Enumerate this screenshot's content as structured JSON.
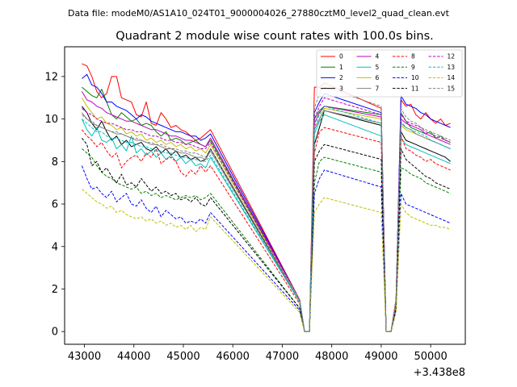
{
  "figure": {
    "suptitle": "Data file: modeM0/AS1A10_024T01_9000004026_27880cztM0_level2_quad_clean.evt",
    "title": "Quadrant 2 module wise count rates with 100.0s bins.",
    "offset_label": "+3.438e8"
  },
  "chart_data": {
    "type": "line",
    "title": "Quadrant 2 module wise count rates with 100.0s bins.",
    "xlabel": "",
    "ylabel": "",
    "x_offset": 343800000,
    "xlim": [
      42600,
      50700
    ],
    "ylim": [
      -0.6,
      13.4
    ],
    "xticks": [
      43000,
      44000,
      45000,
      46000,
      47000,
      48000,
      49000,
      50000
    ],
    "yticks": [
      0,
      2,
      4,
      6,
      8,
      10,
      12
    ],
    "segments": [
      {
        "start": 42950,
        "n": 27
      },
      {
        "start": 47350,
        "n": 6
      },
      {
        "start": 49000,
        "n": 15
      }
    ],
    "series": [
      {
        "name": "0",
        "color": "#ff0000",
        "dash": "solid",
        "values": [
          12.6,
          12.5,
          12.0,
          11.3,
          11.0,
          11.2,
          12.0,
          12.0,
          11.0,
          10.9,
          10.8,
          10.2,
          10.1,
          10.8,
          9.8,
          9.7,
          10.3,
          10.0,
          9.6,
          9.7,
          9.5,
          9.4,
          9.2,
          9.0,
          9.1,
          9.3,
          9.5,
          1.5,
          0,
          0,
          11.5,
          11.5,
          11.7,
          10.5,
          0,
          0,
          1.5,
          10.9,
          10.6,
          10.7,
          10.2,
          10.0,
          10.3,
          10.0,
          9.8,
          10.0,
          9.7,
          9.8,
          9.8,
          9.6
        ]
      },
      {
        "name": "1",
        "color": "#008000",
        "dash": "solid",
        "values": [
          11.5,
          11.3,
          11.1,
          11.0,
          11.4,
          10.8,
          10.2,
          10.0,
          10.3,
          10.1,
          9.9,
          10.0,
          9.7,
          9.8,
          9.7,
          9.4,
          9.2,
          9.4,
          9.0,
          9.1,
          9.0,
          8.8,
          8.9,
          9.0,
          8.8,
          8.7,
          9.0,
          1.5,
          0,
          0,
          10.0,
          10.4,
          10.6,
          10.2,
          0,
          0,
          1.5,
          10.3,
          9.9,
          9.6,
          9.5,
          9.4,
          9.3,
          9.4,
          9.1,
          9.2,
          9.0,
          8.9,
          8.8,
          8.3
        ]
      },
      {
        "name": "2",
        "color": "#0000ff",
        "dash": "solid",
        "values": [
          11.9,
          12.1,
          11.6,
          11.5,
          11.2,
          10.8,
          10.8,
          10.6,
          10.5,
          10.4,
          10.2,
          10.0,
          10.2,
          10.1,
          9.9,
          9.8,
          9.7,
          9.6,
          9.5,
          9.4,
          9.4,
          9.3,
          9.2,
          9.2,
          9.0,
          9.1,
          9.3,
          1.5,
          0,
          0,
          10.3,
          10.8,
          11.2,
          10.3,
          0,
          0,
          1.5,
          11.1,
          10.7,
          10.6,
          10.5,
          10.3,
          10.2,
          10.0,
          9.9,
          9.8,
          9.7,
          9.6,
          9.8,
          8.9
        ]
      },
      {
        "name": "3",
        "color": "#000000",
        "dash": "solid",
        "values": [
          10.6,
          10.3,
          9.8,
          9.5,
          9.9,
          9.4,
          9.0,
          9.2,
          8.8,
          9.0,
          8.7,
          8.8,
          8.9,
          8.6,
          8.5,
          8.7,
          8.4,
          8.6,
          8.3,
          8.5,
          8.2,
          8.3,
          8.1,
          8.2,
          8.0,
          8.1,
          8.6,
          1.4,
          0,
          0,
          8.8,
          9.6,
          10.4,
          9.7,
          0,
          0,
          1.4,
          9.4,
          9.0,
          8.9,
          8.8,
          8.7,
          8.6,
          8.5,
          8.4,
          8.3,
          8.2,
          8.0,
          8.1,
          7.9
        ]
      },
      {
        "name": "4",
        "color": "#bf00bf",
        "dash": "solid",
        "values": [
          11.3,
          10.9,
          10.8,
          10.6,
          10.5,
          10.3,
          10.2,
          10.1,
          10.0,
          9.9,
          9.9,
          9.8,
          9.7,
          9.6,
          9.5,
          9.5,
          9.4,
          9.3,
          9.2,
          9.2,
          9.1,
          9.0,
          9.0,
          8.9,
          8.8,
          8.7,
          9.1,
          1.5,
          0,
          0,
          9.8,
          10.3,
          10.6,
          10.1,
          0,
          0,
          1.5,
          10.0,
          9.8,
          9.7,
          9.6,
          9.5,
          9.3,
          9.2,
          9.1,
          9.0,
          8.9,
          8.8,
          9.2,
          7.8
        ]
      },
      {
        "name": "5",
        "color": "#00bfbf",
        "dash": "solid",
        "values": [
          10.0,
          9.5,
          9.2,
          9.6,
          9.0,
          8.9,
          9.1,
          8.6,
          8.8,
          8.5,
          9.2,
          8.4,
          8.6,
          8.3,
          8.5,
          8.2,
          8.4,
          8.1,
          8.3,
          8.0,
          8.2,
          7.9,
          8.1,
          7.8,
          7.9,
          7.7,
          8.2,
          1.4,
          0,
          0,
          9.3,
          9.9,
          10.2,
          9.2,
          0,
          0,
          1.4,
          9.1,
          8.8,
          8.7,
          8.6,
          8.5,
          8.4,
          8.3,
          8.2,
          8.1,
          8.0,
          7.9,
          7.8,
          7.2
        ]
      },
      {
        "name": "6",
        "color": "#bfbf00",
        "dash": "solid",
        "values": [
          11.0,
          10.6,
          10.3,
          10.0,
          10.1,
          9.8,
          9.7,
          9.5,
          9.6,
          9.3,
          9.4,
          9.2,
          9.3,
          9.0,
          9.1,
          8.9,
          9.0,
          8.8,
          8.9,
          8.7,
          8.8,
          8.6,
          8.7,
          8.5,
          8.6,
          8.4,
          8.8,
          1.5,
          0,
          0,
          9.5,
          10.0,
          10.5,
          10.0,
          0,
          0,
          1.5,
          9.7,
          9.5,
          9.4,
          9.3,
          9.2,
          9.1,
          9.0,
          8.9,
          8.8,
          8.7,
          8.6,
          8.5,
          8.4
        ]
      },
      {
        "name": "7",
        "color": "#808080",
        "dash": "solid",
        "values": [
          10.3,
          10.0,
          9.8,
          9.7,
          9.6,
          9.5,
          9.4,
          9.3,
          9.3,
          9.2,
          9.1,
          9.0,
          9.0,
          8.9,
          8.8,
          8.8,
          8.7,
          8.6,
          8.6,
          8.5,
          8.4,
          8.4,
          8.3,
          8.2,
          8.2,
          8.1,
          8.5,
          1.4,
          0,
          0,
          9.5,
          10.0,
          10.4,
          9.8,
          0,
          0,
          1.4,
          9.8,
          9.6,
          9.5,
          9.3,
          9.2,
          9.1,
          9.0,
          8.9,
          8.8,
          8.7,
          8.6,
          8.5,
          8.3
        ]
      },
      {
        "name": "8",
        "color": "#ff0000",
        "dash": "dashed",
        "values": [
          9.5,
          9.2,
          9.0,
          8.7,
          8.9,
          8.5,
          8.2,
          8.4,
          7.7,
          8.0,
          8.2,
          8.3,
          8.0,
          8.4,
          8.2,
          8.6,
          7.9,
          8.1,
          8.2,
          8.0,
          7.5,
          7.3,
          7.6,
          7.4,
          7.8,
          7.5,
          7.8,
          1.3,
          0,
          0,
          8.4,
          9.4,
          9.6,
          8.9,
          0,
          0,
          1.3,
          9.2,
          8.6,
          8.5,
          8.3,
          8.2,
          8.0,
          8.1,
          7.9,
          7.8,
          7.7,
          7.6,
          7.4,
          7.2
        ]
      },
      {
        "name": "9",
        "color": "#008000",
        "dash": "dashed",
        "values": [
          8.6,
          8.4,
          8.2,
          7.8,
          7.5,
          7.3,
          7.2,
          7.0,
          6.9,
          6.8,
          6.7,
          6.8,
          6.5,
          6.6,
          6.4,
          6.5,
          6.3,
          6.4,
          6.3,
          6.2,
          6.3,
          6.4,
          6.3,
          6.4,
          6.2,
          6.3,
          6.5,
          1.1,
          0,
          0,
          7.0,
          8.0,
          8.2,
          7.5,
          0,
          0,
          1.1,
          7.7,
          7.6,
          7.4,
          7.3,
          7.2,
          7.0,
          6.9,
          6.8,
          6.7,
          6.6,
          6.5,
          6.4,
          6.2
        ]
      },
      {
        "name": "10",
        "color": "#0000ff",
        "dash": "dashed",
        "values": [
          7.8,
          7.2,
          6.7,
          6.8,
          6.5,
          6.3,
          6.6,
          6.1,
          6.3,
          6.5,
          6.0,
          5.9,
          6.2,
          5.8,
          5.6,
          5.9,
          5.4,
          5.7,
          5.5,
          5.3,
          5.4,
          5.1,
          5.2,
          5.1,
          5.3,
          5.1,
          5.6,
          1.0,
          0,
          0,
          6.5,
          7.2,
          7.6,
          6.8,
          0,
          0,
          1.0,
          6.5,
          6.0,
          5.9,
          5.8,
          5.7,
          5.6,
          5.5,
          5.4,
          5.3,
          5.2,
          5.1,
          5.7,
          5.3
        ]
      },
      {
        "name": "11",
        "color": "#000000",
        "dash": "dashed",
        "values": [
          9.1,
          8.8,
          7.8,
          8.0,
          7.5,
          7.7,
          7.3,
          7.0,
          7.4,
          6.9,
          7.0,
          6.8,
          7.2,
          6.9,
          6.6,
          6.8,
          6.5,
          6.6,
          6.4,
          6.5,
          6.2,
          6.3,
          6.1,
          6.3,
          6.0,
          5.9,
          6.3,
          1.1,
          0,
          0,
          8.0,
          8.5,
          8.8,
          8.1,
          0,
          0,
          1.1,
          8.6,
          8.1,
          7.9,
          7.7,
          7.5,
          7.3,
          7.2,
          7.0,
          6.9,
          6.8,
          6.7,
          6.5,
          6.1
        ]
      },
      {
        "name": "12",
        "color": "#bf00bf",
        "dash": "dashed",
        "values": [
          10.5,
          10.3,
          10.2,
          10.0,
          9.9,
          9.8,
          9.8,
          9.7,
          9.6,
          9.5,
          9.5,
          9.4,
          9.4,
          9.3,
          9.2,
          9.2,
          9.1,
          9.0,
          9.0,
          8.9,
          8.9,
          8.8,
          8.8,
          8.7,
          8.6,
          8.6,
          8.9,
          1.5,
          0,
          0,
          10.0,
          10.6,
          11.0,
          10.2,
          0,
          0,
          1.5,
          10.2,
          9.9,
          9.8,
          9.7,
          9.6,
          9.4,
          9.3,
          9.2,
          9.1,
          9.0,
          8.9,
          8.8,
          8.6
        ]
      },
      {
        "name": "13",
        "color": "#00bfbf",
        "dash": "dashed",
        "values": [
          10.0,
          9.8,
          9.6,
          9.4,
          9.4,
          9.2,
          9.1,
          9.1,
          9.0,
          8.9,
          8.9,
          8.8,
          8.7,
          8.7,
          8.6,
          8.5,
          8.5,
          8.4,
          8.4,
          8.3,
          8.2,
          8.2,
          8.1,
          8.1,
          8.0,
          8.0,
          8.3,
          1.4,
          0,
          0,
          9.6,
          10.2,
          10.6,
          9.8,
          0,
          0,
          1.4,
          9.9,
          9.6,
          9.5,
          9.4,
          9.3,
          9.2,
          9.0,
          8.9,
          8.8,
          8.7,
          8.6,
          8.5,
          8.3
        ]
      },
      {
        "name": "14",
        "color": "#bfbf00",
        "dash": "dashed",
        "values": [
          6.7,
          6.5,
          6.3,
          6.1,
          6.0,
          5.8,
          5.9,
          5.6,
          5.7,
          5.5,
          5.4,
          5.3,
          5.4,
          5.2,
          5.3,
          5.1,
          5.2,
          5.0,
          5.1,
          4.9,
          5.0,
          4.8,
          5.0,
          4.7,
          4.9,
          4.8,
          5.4,
          0.9,
          0,
          0,
          5.6,
          6.0,
          6.3,
          5.6,
          0,
          0,
          0.9,
          6.0,
          5.6,
          5.4,
          5.3,
          5.2,
          5.1,
          5.0,
          5.0,
          4.9,
          4.9,
          4.8,
          4.9,
          4.7
        ]
      },
      {
        "name": "15",
        "color": "#808080",
        "dash": "dashed",
        "values": [
          10.2,
          10.0,
          9.9,
          9.7,
          9.6,
          9.5,
          9.4,
          9.4,
          9.3,
          9.2,
          9.1,
          9.1,
          9.0,
          8.9,
          8.9,
          8.8,
          8.8,
          8.7,
          8.6,
          8.6,
          8.5,
          8.5,
          8.4,
          8.4,
          8.3,
          8.2,
          8.6,
          1.5,
          0,
          0,
          10.5,
          11.2,
          11.5,
          10.6,
          0,
          0,
          1.5,
          10.5,
          10.1,
          9.9,
          9.8,
          9.6,
          9.5,
          9.4,
          9.3,
          9.2,
          9.1,
          9.0,
          8.9,
          8.7
        ]
      }
    ],
    "legend": {
      "placement": "top-right",
      "columns": 4
    }
  }
}
